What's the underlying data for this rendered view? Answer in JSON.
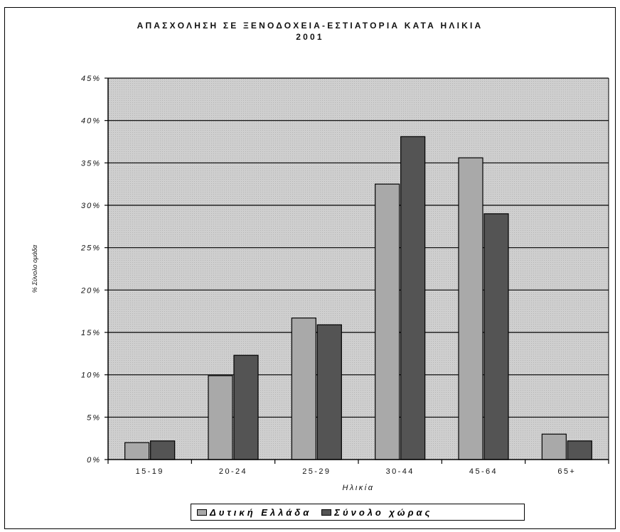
{
  "chart_data": {
    "type": "bar",
    "title": "ΑΠΑΣΧΟΛΗΣΗ ΣΕ ΞΕΝΟΔΟΧΕΙΑ-ΕΣΤΙΑΤΟΡΙΑ ΚΑΤΑ ΗΛΙΚΙΑ",
    "subtitle": "2001",
    "xlabel": "Ηλικία",
    "ylabel": "% Σύνολο ομάδα",
    "ylim": [
      0,
      45
    ],
    "yticks": [
      "0%",
      "5%",
      "10%",
      "15%",
      "20%",
      "25%",
      "30%",
      "35%",
      "40%",
      "45%"
    ],
    "categories": [
      "15-19",
      "20-24",
      "25-29",
      "30-44",
      "45-64",
      "65+"
    ],
    "series": [
      {
        "name": "Δυτική Ελλάδα",
        "values": [
          2.0,
          9.9,
          16.7,
          32.5,
          35.6,
          3.0
        ]
      },
      {
        "name": "Σύνολο χώρας",
        "values": [
          2.2,
          12.3,
          15.9,
          38.1,
          29.0,
          2.2
        ]
      }
    ],
    "colors": {
      "series_1": "#a9a9a9",
      "series_2": "#545454",
      "plot_bg": "#cfcfcf",
      "grid": "#000000"
    },
    "grid": true,
    "legend_position": "bottom"
  }
}
